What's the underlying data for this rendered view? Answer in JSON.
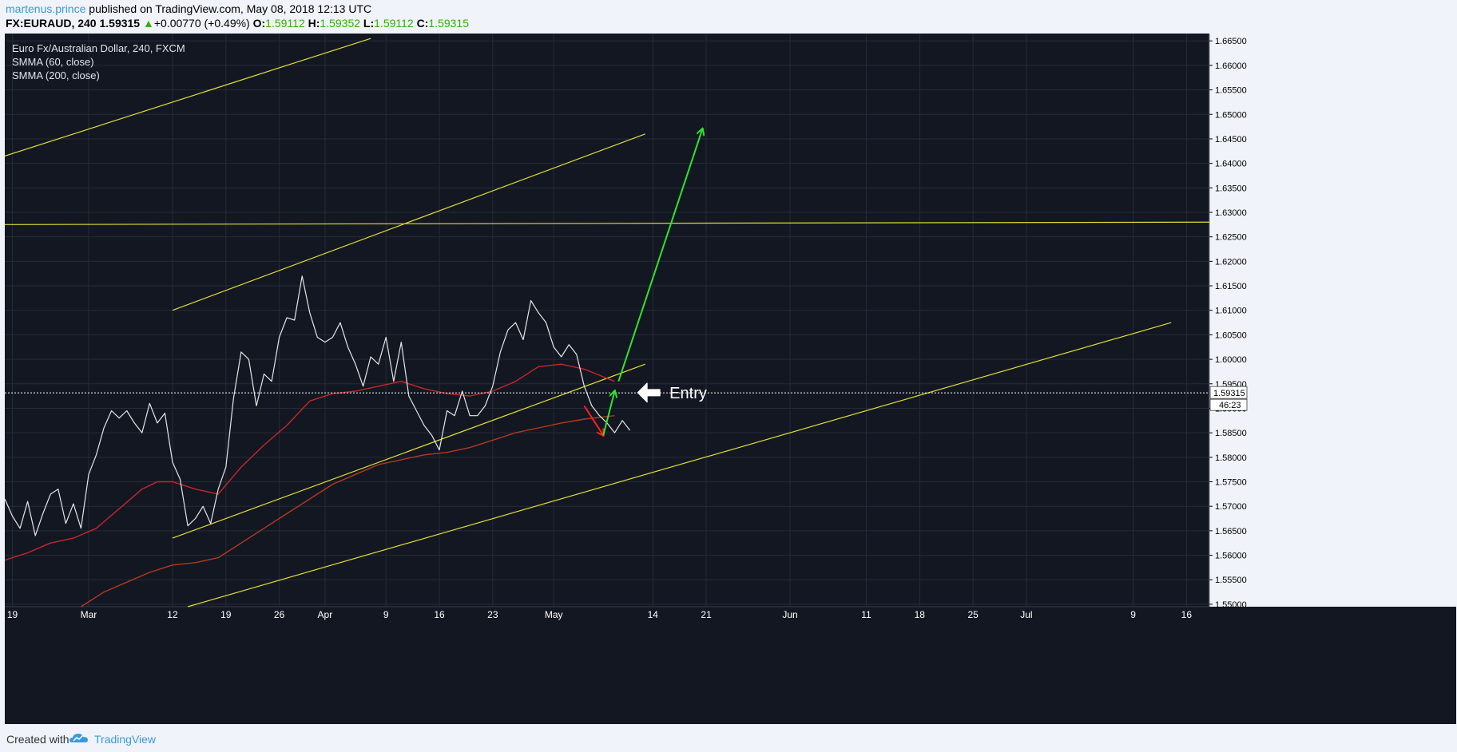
{
  "header": {
    "author": "martenus.prince",
    "published": " published on TradingView.com, May 08, 2018 12:13 UTC",
    "symbol": "FX:EURAUD, 240",
    "last": "1.59315",
    "change": "+0.00770 (+0.49%)",
    "o_label": "O:",
    "o_value": "1.59112",
    "h_label": "H:",
    "h_value": "1.59352",
    "l_label": "L:",
    "l_value": "1.59112",
    "c_label": "C:",
    "c_value": "1.59315"
  },
  "legend": {
    "title": "Euro Fx/Australian Dollar, 240, FXCM",
    "ind1": "SMMA (60, close)",
    "ind2": "SMMA (200, close)"
  },
  "footer": {
    "created": "Created with",
    "brand": "TradingView"
  },
  "colors": {
    "background": "#131722",
    "price": "#e6e6e6",
    "smma60": "#c62828",
    "smma200": "#b23a1f",
    "trendline": "#e0dd36",
    "arrow_up": "#2ee52e",
    "arrow_down": "#ff2020",
    "entry": "#ffffff"
  },
  "chart_data": {
    "type": "line",
    "title": "Euro Fx/Australian Dollar, 240, FXCM",
    "ylim": [
      1.5495,
      1.6665
    ],
    "y_ticks": [
      "1.66500",
      "1.66000",
      "1.65500",
      "1.65000",
      "1.64500",
      "1.64000",
      "1.63500",
      "1.63000",
      "1.62500",
      "1.62000",
      "1.61500",
      "1.61000",
      "1.60500",
      "1.60000",
      "1.59500",
      "1.59000",
      "1.58500",
      "1.58000",
      "1.57500",
      "1.57000",
      "1.56500",
      "1.56000",
      "1.55500",
      "1.55000"
    ],
    "x_ticks": [
      {
        "label": "19",
        "d": 0
      },
      {
        "label": "Mar",
        "d": 10
      },
      {
        "label": "12",
        "d": 21
      },
      {
        "label": "19",
        "d": 28
      },
      {
        "label": "26",
        "d": 35
      },
      {
        "label": "Apr",
        "d": 41
      },
      {
        "label": "9",
        "d": 49
      },
      {
        "label": "16",
        "d": 56
      },
      {
        "label": "23",
        "d": 63
      },
      {
        "label": "May",
        "d": 71
      },
      {
        "label": "14",
        "d": 84
      },
      {
        "label": "21",
        "d": 91
      },
      {
        "label": "Jun",
        "d": 102
      },
      {
        "label": "11",
        "d": 112
      },
      {
        "label": "18",
        "d": 119
      },
      {
        "label": "25",
        "d": 126
      },
      {
        "label": "Jul",
        "d": 133
      },
      {
        "label": "9",
        "d": 147
      },
      {
        "label": "16",
        "d": 154
      }
    ],
    "x_range": [
      -1,
      157
    ],
    "current_price": "1.59315",
    "countdown": "46:23",
    "price_series": {
      "name": "EURAUD",
      "points": [
        [
          -1,
          1.5715
        ],
        [
          0,
          1.568
        ],
        [
          1,
          1.5655
        ],
        [
          2,
          1.571
        ],
        [
          3,
          1.564
        ],
        [
          4,
          1.5685
        ],
        [
          5,
          1.5725
        ],
        [
          6,
          1.5735
        ],
        [
          7,
          1.5665
        ],
        [
          8,
          1.5705
        ],
        [
          9,
          1.5655
        ],
        [
          10,
          1.5765
        ],
        [
          11,
          1.5805
        ],
        [
          12,
          1.586
        ],
        [
          13,
          1.5895
        ],
        [
          14,
          1.588
        ],
        [
          15,
          1.5895
        ],
        [
          16,
          1.587
        ],
        [
          17,
          1.585
        ],
        [
          18,
          1.591
        ],
        [
          19,
          1.587
        ],
        [
          20,
          1.589
        ],
        [
          21,
          1.579
        ],
        [
          22,
          1.5755
        ],
        [
          23,
          1.566
        ],
        [
          24,
          1.5675
        ],
        [
          25,
          1.57
        ],
        [
          26,
          1.5665
        ],
        [
          27,
          1.5735
        ],
        [
          28,
          1.578
        ],
        [
          29,
          1.592
        ],
        [
          30,
          1.6015
        ],
        [
          31,
          1.6
        ],
        [
          32,
          1.5905
        ],
        [
          33,
          1.597
        ],
        [
          34,
          1.5955
        ],
        [
          35,
          1.6045
        ],
        [
          36,
          1.6085
        ],
        [
          37,
          1.608
        ],
        [
          38,
          1.617
        ],
        [
          39,
          1.6095
        ],
        [
          40,
          1.6045
        ],
        [
          41,
          1.6035
        ],
        [
          42,
          1.6045
        ],
        [
          43,
          1.6075
        ],
        [
          44,
          1.6025
        ],
        [
          45,
          1.599
        ],
        [
          46,
          1.5945
        ],
        [
          47,
          1.6005
        ],
        [
          48,
          1.599
        ],
        [
          49,
          1.6045
        ],
        [
          50,
          1.5955
        ],
        [
          51,
          1.6035
        ],
        [
          52,
          1.5925
        ],
        [
          53,
          1.5895
        ],
        [
          54,
          1.5865
        ],
        [
          55,
          1.5845
        ],
        [
          56,
          1.5815
        ],
        [
          57,
          1.5895
        ],
        [
          58,
          1.5885
        ],
        [
          59,
          1.5935
        ],
        [
          60,
          1.5885
        ],
        [
          61,
          1.5885
        ],
        [
          62,
          1.5905
        ],
        [
          63,
          1.5945
        ],
        [
          64,
          1.6015
        ],
        [
          65,
          1.606
        ],
        [
          66,
          1.6075
        ],
        [
          67,
          1.604
        ],
        [
          68,
          1.612
        ],
        [
          69,
          1.6095
        ],
        [
          70,
          1.6075
        ],
        [
          71,
          1.6025
        ],
        [
          72,
          1.6005
        ],
        [
          73,
          1.603
        ],
        [
          74,
          1.601
        ],
        [
          75,
          1.5945
        ],
        [
          76,
          1.5905
        ],
        [
          77,
          1.5885
        ],
        [
          78,
          1.587
        ],
        [
          79,
          1.585
        ],
        [
          80,
          1.5875
        ],
        [
          81,
          1.5855
        ]
      ]
    },
    "smma60_series": {
      "name": "SMMA (60, close)",
      "points": [
        [
          -1,
          1.559
        ],
        [
          2,
          1.5605
        ],
        [
          5,
          1.5625
        ],
        [
          8,
          1.5635
        ],
        [
          11,
          1.5655
        ],
        [
          14,
          1.5695
        ],
        [
          17,
          1.5735
        ],
        [
          19,
          1.575
        ],
        [
          21,
          1.575
        ],
        [
          24,
          1.5735
        ],
        [
          27,
          1.5725
        ],
        [
          30,
          1.578
        ],
        [
          33,
          1.5825
        ],
        [
          36,
          1.5865
        ],
        [
          39,
          1.5915
        ],
        [
          42,
          1.593
        ],
        [
          45,
          1.5935
        ],
        [
          48,
          1.5945
        ],
        [
          51,
          1.5955
        ],
        [
          54,
          1.594
        ],
        [
          57,
          1.593
        ],
        [
          60,
          1.5925
        ],
        [
          63,
          1.5935
        ],
        [
          66,
          1.5955
        ],
        [
          69,
          1.5985
        ],
        [
          72,
          1.599
        ],
        [
          75,
          1.598
        ],
        [
          79,
          1.5955
        ]
      ]
    },
    "smma200_series": {
      "name": "SMMA (200, close)",
      "points": [
        [
          9,
          1.5495
        ],
        [
          12,
          1.5525
        ],
        [
          15,
          1.5545
        ],
        [
          18,
          1.5565
        ],
        [
          21,
          1.558
        ],
        [
          24,
          1.5585
        ],
        [
          27,
          1.5595
        ],
        [
          30,
          1.5625
        ],
        [
          33,
          1.5655
        ],
        [
          36,
          1.5685
        ],
        [
          39,
          1.5715
        ],
        [
          42,
          1.5745
        ],
        [
          45,
          1.5765
        ],
        [
          48,
          1.5785
        ],
        [
          51,
          1.5795
        ],
        [
          54,
          1.5805
        ],
        [
          57,
          1.581
        ],
        [
          60,
          1.582
        ],
        [
          63,
          1.5835
        ],
        [
          66,
          1.585
        ],
        [
          69,
          1.586
        ],
        [
          72,
          1.587
        ],
        [
          75,
          1.5878
        ],
        [
          79,
          1.5885
        ]
      ]
    },
    "trendlines": [
      {
        "from": [
          -1,
          1.6415
        ],
        "to": [
          47,
          1.6655
        ]
      },
      {
        "from": [
          21,
          1.61
        ],
        "to": [
          83,
          1.646
        ]
      },
      {
        "from": [
          -1,
          1.6275
        ],
        "to": [
          157,
          1.628
        ]
      },
      {
        "from": [
          21,
          1.5635
        ],
        "to": [
          83,
          1.599
        ]
      },
      {
        "from": [
          23,
          1.5495
        ],
        "to": [
          152,
          1.6075
        ]
      }
    ],
    "arrows": [
      {
        "kind": "down",
        "from": [
          75,
          1.5905
        ],
        "to": [
          77.5,
          1.5845
        ]
      },
      {
        "kind": "up",
        "from": [
          77.5,
          1.5845
        ],
        "to": [
          79,
          1.5935
        ]
      },
      {
        "kind": "up",
        "from": [
          79.5,
          1.5955
        ],
        "to": [
          90.5,
          1.647
        ]
      }
    ],
    "entry_marker": {
      "label": "Entry",
      "at": [
        82,
        1.5932
      ]
    }
  }
}
